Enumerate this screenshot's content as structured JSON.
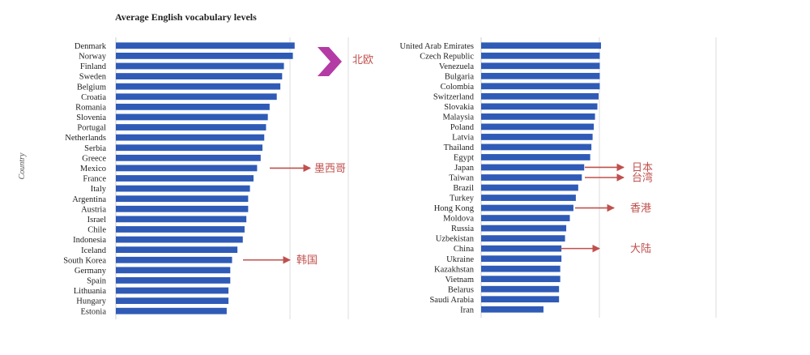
{
  "chart_data": [
    {
      "type": "bar",
      "orientation": "horizontal",
      "title": "Average English vocabulary levels",
      "ylabel": "Country",
      "bar_color": "#2f5bb7",
      "categories": [
        "Denmark",
        "Norway",
        "Finland",
        "Sweden",
        "Belgium",
        "Croatia",
        "Romania",
        "Slovenia",
        "Portugal",
        "Netherlands",
        "Serbia",
        "Greece",
        "Mexico",
        "France",
        "Italy",
        "Argentina",
        "Austria",
        "Israel",
        "Chile",
        "Indonesia",
        "Iceland",
        "South Korea",
        "Germany",
        "Spain",
        "Lithuania",
        "Hungary",
        "Estonia"
      ],
      "values": [
        100,
        99,
        94,
        93,
        92,
        90,
        86,
        85,
        84,
        83,
        82,
        81,
        79,
        77,
        75,
        74,
        74,
        73,
        72,
        71,
        68,
        65,
        64,
        64,
        63,
        63,
        62
      ],
      "xlim": [
        0,
        130
      ],
      "annotations": [
        {
          "category": "Denmark",
          "label": "北欧",
          "marker": "chevron",
          "color": "#b43aa5"
        },
        {
          "category": "Mexico",
          "label": "墨西哥",
          "marker": "arrow",
          "color": "#c0504d"
        },
        {
          "category": "South Korea",
          "label": "韩国",
          "marker": "arrow",
          "color": "#c0504d"
        }
      ]
    },
    {
      "type": "bar",
      "orientation": "horizontal",
      "bar_color": "#2f5bb7",
      "categories": [
        "United Arab Emirates",
        "Czech Republic",
        "Venezuela",
        "Bulgaria",
        "Colombia",
        "Switzerland",
        "Slovakia",
        "Malaysia",
        "Poland",
        "Latvia",
        "Thailand",
        "Egypt",
        "Japan",
        "Taiwan",
        "Brazil",
        "Turkey",
        "Hong Kong",
        "Moldova",
        "Russia",
        "Uzbekistan",
        "China",
        "Ukraine",
        "Kazakhstan",
        "Vietnam",
        "Belarus",
        "Saudi Arabia",
        "Iran"
      ],
      "values": [
        100,
        99,
        99,
        99,
        99,
        98,
        97,
        95,
        94,
        93,
        92,
        91,
        86,
        84,
        81,
        79,
        77,
        74,
        71,
        70,
        67,
        67,
        66,
        66,
        65,
        65,
        52
      ],
      "xlim": [
        0,
        196
      ],
      "annotations": [
        {
          "category": "Japan",
          "label": "日本",
          "marker": "arrow",
          "color": "#c0504d"
        },
        {
          "category": "Taiwan",
          "label": "台湾",
          "marker": "arrow",
          "color": "#c0504d"
        },
        {
          "category": "Hong Kong",
          "label": "香港",
          "marker": "arrow",
          "color": "#c0504d"
        },
        {
          "category": "China",
          "label": "大陆",
          "marker": "arrow",
          "color": "#c0504d"
        }
      ]
    }
  ]
}
